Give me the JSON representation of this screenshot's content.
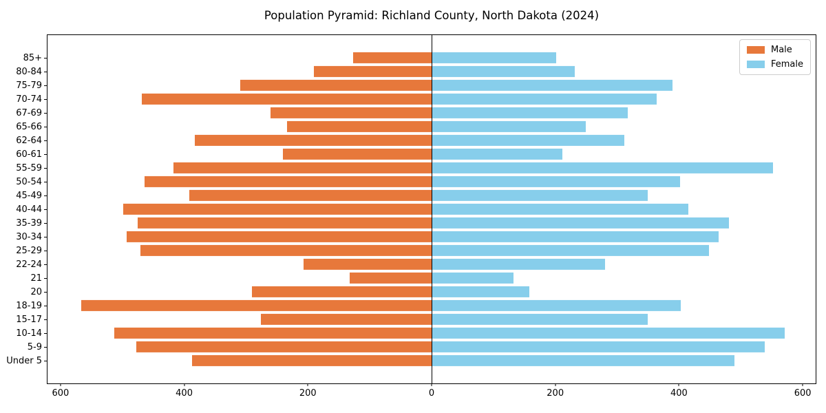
{
  "chart_data": {
    "type": "bar",
    "variant": "population-pyramid",
    "title": "Population Pyramid: Richland County, North Dakota (2024)",
    "categories": [
      "85+",
      "80-84",
      "75-79",
      "70-74",
      "67-69",
      "65-66",
      "62-64",
      "60-61",
      "55-59",
      "50-54",
      "45-49",
      "40-44",
      "35-39",
      "30-34",
      "25-29",
      "22-24",
      "21",
      "20",
      "18-19",
      "15-17",
      "10-14",
      "5-9",
      "Under 5"
    ],
    "series": [
      {
        "name": "Male",
        "side": "left",
        "color": "#e7783b",
        "values": [
          127,
          190,
          309,
          469,
          260,
          234,
          383,
          240,
          417,
          464,
          392,
          499,
          475,
          493,
          471,
          207,
          132,
          291,
          566,
          276,
          513,
          478,
          387
        ]
      },
      {
        "name": "Female",
        "side": "right",
        "color": "#87ceeb",
        "values": [
          201,
          232,
          389,
          364,
          317,
          249,
          312,
          212,
          552,
          402,
          349,
          415,
          481,
          464,
          448,
          281,
          132,
          158,
          403,
          350,
          571,
          539,
          490
        ]
      }
    ],
    "xlabel": "",
    "ylabel": "",
    "x_axis": {
      "limit": 621,
      "tick_values": [
        -600,
        -400,
        -200,
        0,
        200,
        400,
        600
      ],
      "tick_labels": [
        "600",
        "400",
        "200",
        "0",
        "200",
        "400",
        "600"
      ]
    },
    "legend": {
      "position": "upper-right",
      "entries": [
        "Male",
        "Female"
      ]
    },
    "grid": false,
    "zero_line": true,
    "colors": {
      "axis": "#000000",
      "background": "#ffffff",
      "legend_border": "#cccccc"
    }
  }
}
